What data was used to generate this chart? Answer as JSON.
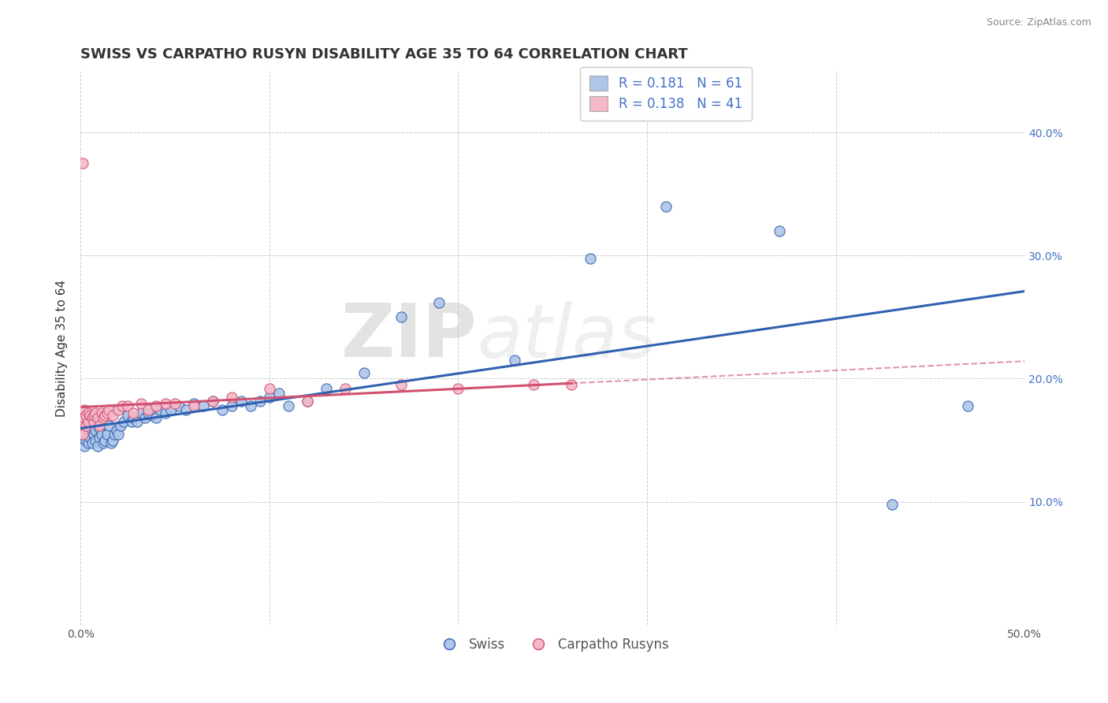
{
  "title": "SWISS VS CARPATHO RUSYN DISABILITY AGE 35 TO 64 CORRELATION CHART",
  "source": "Source: ZipAtlas.com",
  "xlabel": "",
  "ylabel": "Disability Age 35 to 64",
  "xlim": [
    0.0,
    0.5
  ],
  "ylim": [
    0.0,
    0.45
  ],
  "xticks": [
    0.0,
    0.1,
    0.2,
    0.3,
    0.4,
    0.5
  ],
  "xticklabels": [
    "0.0%",
    "",
    "",
    "",
    "",
    "50.0%"
  ],
  "yticks": [
    0.1,
    0.2,
    0.3,
    0.4
  ],
  "right_yticklabels": [
    "10.0%",
    "20.0%",
    "30.0%",
    "40.0%"
  ],
  "swiss_R": 0.181,
  "swiss_N": 61,
  "carpatho_R": 0.138,
  "carpatho_N": 41,
  "swiss_color": "#aec6e8",
  "carpatho_color": "#f4b8c8",
  "swiss_line_color": "#3060b0",
  "carpatho_line_color": "#d05070",
  "swiss_x": [
    0.002,
    0.002,
    0.003,
    0.004,
    0.005,
    0.005,
    0.006,
    0.007,
    0.008,
    0.008,
    0.009,
    0.01,
    0.01,
    0.011,
    0.012,
    0.013,
    0.014,
    0.015,
    0.016,
    0.017,
    0.018,
    0.019,
    0.02,
    0.021,
    0.023,
    0.025,
    0.027,
    0.028,
    0.03,
    0.032,
    0.034,
    0.036,
    0.038,
    0.04,
    0.042,
    0.045,
    0.048,
    0.052,
    0.056,
    0.06,
    0.065,
    0.07,
    0.075,
    0.08,
    0.085,
    0.09,
    0.095,
    0.1,
    0.105,
    0.11,
    0.12,
    0.13,
    0.15,
    0.17,
    0.19,
    0.23,
    0.27,
    0.31,
    0.37,
    0.43,
    0.47
  ],
  "swiss_y": [
    0.155,
    0.145,
    0.15,
    0.148,
    0.152,
    0.16,
    0.148,
    0.155,
    0.15,
    0.158,
    0.145,
    0.152,
    0.16,
    0.155,
    0.148,
    0.15,
    0.155,
    0.162,
    0.148,
    0.15,
    0.155,
    0.158,
    0.155,
    0.162,
    0.165,
    0.17,
    0.165,
    0.168,
    0.165,
    0.172,
    0.168,
    0.172,
    0.17,
    0.168,
    0.175,
    0.172,
    0.175,
    0.178,
    0.175,
    0.18,
    0.178,
    0.182,
    0.175,
    0.178,
    0.182,
    0.178,
    0.182,
    0.185,
    0.188,
    0.178,
    0.182,
    0.192,
    0.205,
    0.25,
    0.262,
    0.215,
    0.298,
    0.34,
    0.32,
    0.098,
    0.178
  ],
  "carpatho_x": [
    0.001,
    0.001,
    0.002,
    0.002,
    0.003,
    0.003,
    0.004,
    0.004,
    0.005,
    0.006,
    0.007,
    0.007,
    0.008,
    0.009,
    0.01,
    0.011,
    0.012,
    0.013,
    0.014,
    0.015,
    0.017,
    0.02,
    0.022,
    0.025,
    0.028,
    0.032,
    0.036,
    0.04,
    0.045,
    0.05,
    0.06,
    0.07,
    0.08,
    0.1,
    0.12,
    0.14,
    0.17,
    0.2,
    0.24,
    0.26,
    0.001
  ],
  "carpatho_y": [
    0.165,
    0.155,
    0.168,
    0.175,
    0.162,
    0.17,
    0.165,
    0.172,
    0.17,
    0.168,
    0.165,
    0.17,
    0.172,
    0.168,
    0.162,
    0.172,
    0.168,
    0.17,
    0.172,
    0.175,
    0.17,
    0.175,
    0.178,
    0.178,
    0.172,
    0.18,
    0.175,
    0.178,
    0.18,
    0.18,
    0.178,
    0.182,
    0.185,
    0.192,
    0.182,
    0.192,
    0.195,
    0.192,
    0.195,
    0.195,
    0.375
  ],
  "watermark_zip": "ZIP",
  "watermark_atlas": "atlas",
  "background_color": "#ffffff",
  "grid_color": "#cccccc",
  "title_fontsize": 13,
  "axis_label_fontsize": 11,
  "tick_fontsize": 10,
  "legend_fontsize": 12
}
